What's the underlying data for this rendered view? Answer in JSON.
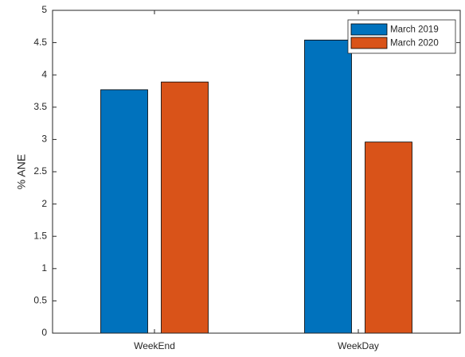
{
  "chart_data": {
    "type": "bar",
    "y_label": "% ANE",
    "categories": [
      "WeekEnd",
      "WeekDay"
    ],
    "series": [
      {
        "name": "March 2019",
        "color": "#0072BD",
        "values": [
          3.77,
          4.54
        ]
      },
      {
        "name": "March 2020",
        "color": "#D95319",
        "values": [
          3.89,
          2.96
        ]
      }
    ],
    "ylim": [
      0,
      5
    ],
    "yticks": [
      0,
      0.5,
      1,
      1.5,
      2,
      2.5,
      3,
      3.5,
      4,
      4.5,
      5
    ],
    "grid": false,
    "legend": "northeast"
  }
}
